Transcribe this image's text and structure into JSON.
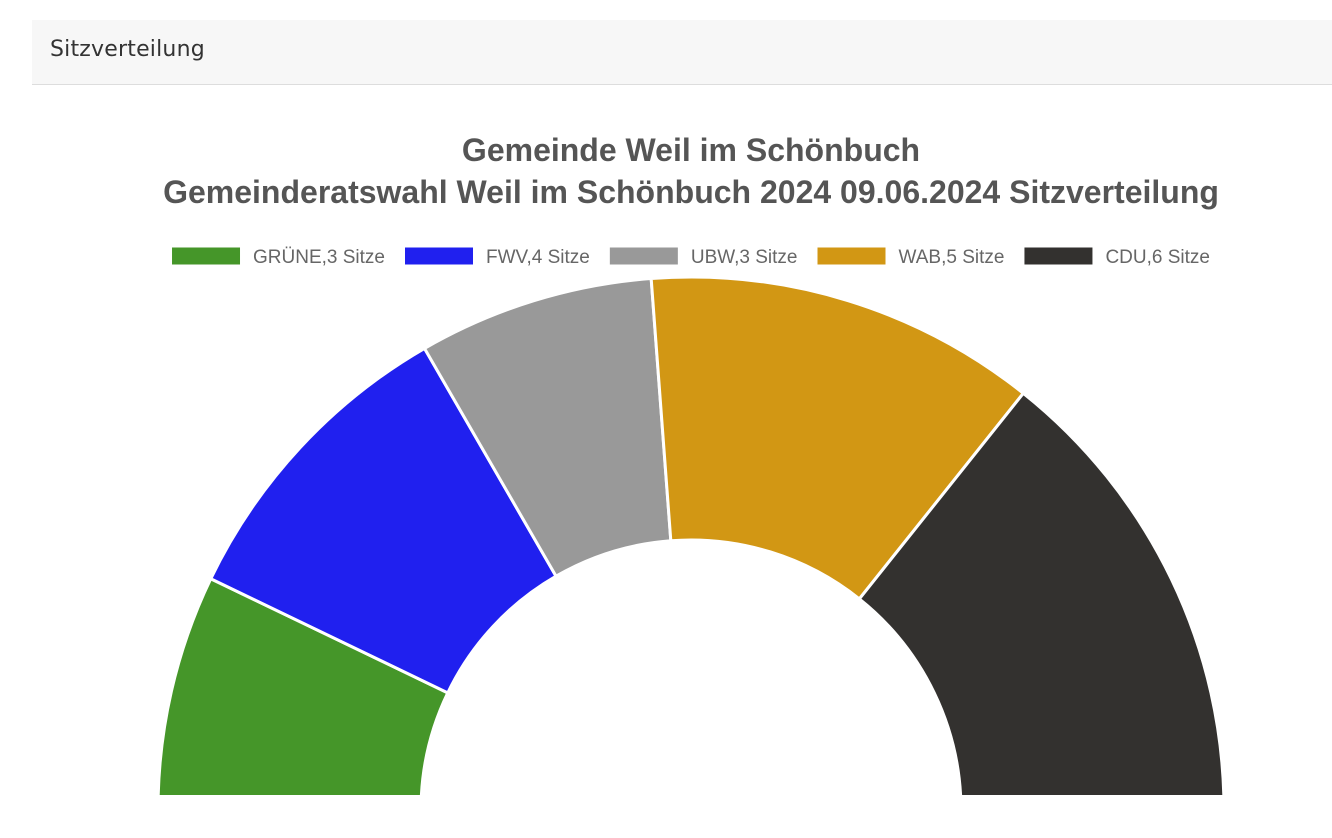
{
  "panel": {
    "header_title": "Sitzverteilung"
  },
  "chart_data": {
    "type": "pie",
    "variant": "semi-donut",
    "title_line1": "Gemeinde Weil im Schönbuch",
    "title_line2": "Gemeinderatswahl Weil im Schönbuch 2024 09.06.2024 Sitzverteilung",
    "legend_position": "top",
    "series": [
      {
        "name": "GRÜNE,3 Sitze",
        "party": "GRÜNE",
        "seats": 3,
        "color": "#459629"
      },
      {
        "name": "FWV,4 Sitze",
        "party": "FWV",
        "seats": 4,
        "color": "#2020ef"
      },
      {
        "name": "UBW,3 Sitze",
        "party": "UBW",
        "seats": 3,
        "color": "#999999"
      },
      {
        "name": "WAB,5 Sitze",
        "party": "WAB",
        "seats": 5,
        "color": "#d29714"
      },
      {
        "name": "CDU,6 Sitze",
        "party": "CDU",
        "seats": 6,
        "color": "#33312f"
      }
    ]
  }
}
